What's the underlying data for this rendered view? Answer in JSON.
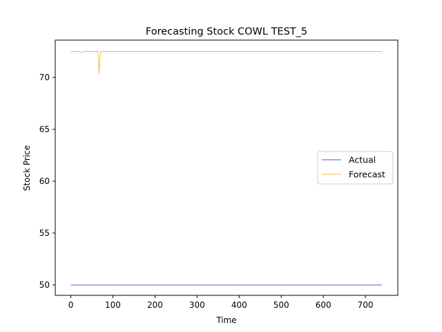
{
  "chart_data": {
    "type": "line",
    "title": "Forecasting Stock COWL TEST_5",
    "xlabel": "Time",
    "ylabel": "Stock Price",
    "xlim": [
      -37,
      777
    ],
    "ylim": [
      49.0,
      73.6
    ],
    "xticks": [
      0,
      100,
      200,
      300,
      400,
      500,
      600,
      700
    ],
    "yticks": [
      50,
      55,
      60,
      65,
      70
    ],
    "grid": false,
    "legend_position": "center-right",
    "series": [
      {
        "name": "Actual",
        "color": "#5555cc",
        "x": [
          0,
          739
        ],
        "y": [
          50.0,
          50.0
        ]
      },
      {
        "name": "Forecast",
        "color": "#f5b942",
        "x": [
          0,
          10,
          20,
          25,
          28,
          31,
          35,
          45,
          55,
          62,
          64,
          66,
          67,
          69,
          71,
          74,
          80,
          100,
          200,
          300,
          400,
          500,
          600,
          700,
          739
        ],
        "y": [
          72.5,
          72.5,
          72.48,
          72.45,
          72.38,
          72.5,
          72.5,
          72.5,
          72.5,
          72.5,
          72.5,
          71.6,
          70.35,
          71.7,
          72.48,
          72.5,
          72.5,
          72.5,
          72.5,
          72.5,
          72.5,
          72.5,
          72.5,
          72.5,
          72.5
        ]
      }
    ]
  }
}
